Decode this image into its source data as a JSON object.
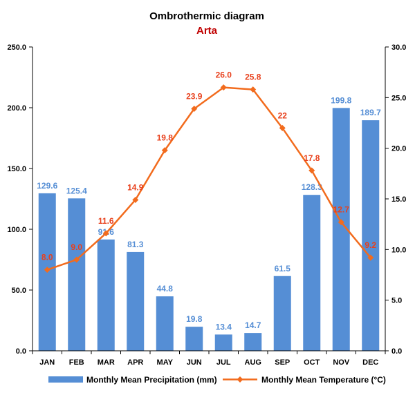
{
  "chart_data": {
    "type": "bar",
    "title": "Ombrothermic diagram",
    "subtitle": "Arta",
    "categories": [
      "JAN",
      "FEB",
      "MAR",
      "APR",
      "MAY",
      "JUN",
      "JUL",
      "AUG",
      "SEP",
      "OCT",
      "NOV",
      "DEC"
    ],
    "series": [
      {
        "name": "Monthly Mean Precipitation (mm)",
        "type": "bar",
        "axis": "left",
        "values": [
          129.6,
          125.4,
          91.6,
          81.3,
          44.8,
          19.8,
          13.4,
          14.7,
          61.5,
          128.3,
          199.8,
          189.7
        ],
        "labels": [
          "129.6",
          "125.4",
          "91.6",
          "81.3",
          "44.8",
          "19.8",
          "13.4",
          "14.7",
          "61.5",
          "128.3",
          "199.8",
          "189.7"
        ]
      },
      {
        "name": "Monthly Mean Temperature (°C)",
        "type": "line",
        "axis": "right",
        "values": [
          8.0,
          9.0,
          11.6,
          14.9,
          19.8,
          23.9,
          26.0,
          25.8,
          22,
          17.8,
          12.7,
          9.2
        ],
        "labels": [
          "8.0",
          "9.0",
          "11.6",
          "14.9",
          "19.8",
          "23.9",
          "26.0",
          "25.8",
          "22",
          "17.8",
          "12.7",
          "9.2"
        ]
      }
    ],
    "y_left": {
      "min": 0,
      "max": 250,
      "ticks": [
        "0.0",
        "50.0",
        "100.0",
        "150.0",
        "200.0",
        "250.0"
      ]
    },
    "y_right": {
      "min": 0,
      "max": 30,
      "ticks": [
        "0.0",
        "5.0",
        "10.0",
        "15.0",
        "20.0",
        "25.0",
        "30.0"
      ]
    },
    "grid": false,
    "legend_position": "bottom"
  },
  "colors": {
    "bar": "#558ED5",
    "bar_label": "#558ED5",
    "line": "#F26B1D",
    "line_label": "#E8401C",
    "subtitle": "#C00000",
    "axis": "#000000"
  }
}
